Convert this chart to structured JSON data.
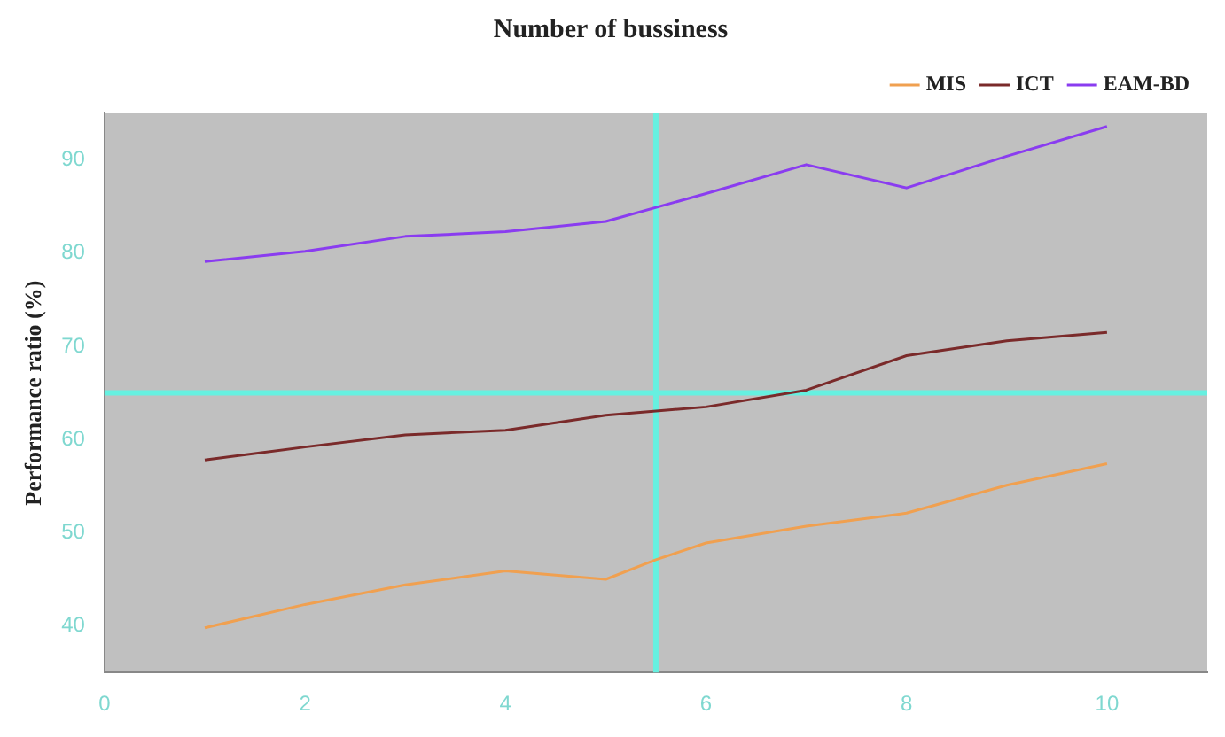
{
  "chart_data": {
    "type": "line",
    "title": "Number of bussiness",
    "ylabel": "Performance ratio (%)",
    "x": [
      1,
      2,
      3,
      4,
      5,
      6,
      7,
      8,
      9,
      10
    ],
    "xlim": [
      0,
      11
    ],
    "xticks": [
      0,
      2,
      4,
      6,
      8,
      10
    ],
    "ylim": [
      35,
      95
    ],
    "yticks": [
      40,
      50,
      60,
      70,
      80,
      90
    ],
    "grid": false,
    "legend": "top right",
    "marker": "none",
    "line_style": "solid",
    "ref_lines": [
      {
        "axis": "x",
        "value": 5.5,
        "color": "#66f0e0"
      },
      {
        "axis": "y",
        "value": 65,
        "color": "#66f0e0"
      }
    ],
    "series": [
      {
        "name": "MIS",
        "color": "#f0a050",
        "x": [
          1,
          2,
          3,
          4,
          5,
          5.5,
          6,
          7,
          8,
          9,
          10
        ],
        "values": [
          39.8,
          42.3,
          44.4,
          45.9,
          45,
          47.1,
          48.9,
          50.7,
          52.1,
          55.1,
          57.4
        ]
      },
      {
        "name": "ICT",
        "color": "#7a2a2a",
        "values": [
          57.8,
          59.2,
          60.5,
          61,
          62.6,
          63.5,
          65.3,
          69,
          70.6,
          71.5
        ]
      },
      {
        "name": "EAM-BD",
        "color": "#8a3cf0",
        "values": [
          79.1,
          80.2,
          81.8,
          82.3,
          83.4,
          86.4,
          89.5,
          87,
          90.4,
          93.6
        ]
      }
    ]
  }
}
